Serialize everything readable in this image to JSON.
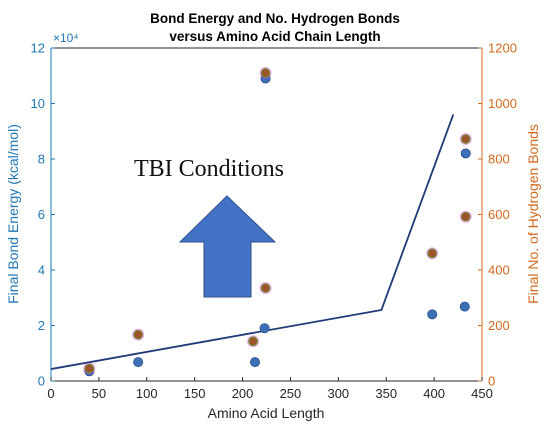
{
  "chart_data": {
    "type": "scatter",
    "title_lines": [
      "Bond Energy and No. Hydrogen Bonds",
      "versus Amino Acid Chain Length"
    ],
    "xlabel": "Amino Acid Length",
    "ylabel_left": "Final Bond Energy (kcal/mol)",
    "ylabel_right": "Final No. of Hydrogen Bonds",
    "y_left_exponent": "×10⁴",
    "xlim": [
      0,
      450
    ],
    "ylim_left": [
      0,
      120000
    ],
    "ylim_right": [
      0,
      1200
    ],
    "x_ticks": [
      "0",
      "50",
      "100",
      "150",
      "200",
      "250",
      "300",
      "350",
      "400",
      "450"
    ],
    "y_left_ticks": [
      "0",
      "2",
      "4",
      "6",
      "8",
      "10",
      "12"
    ],
    "y_right_ticks": [
      "0",
      "200",
      "400",
      "600",
      "800",
      "1000",
      "1200"
    ],
    "grid": false,
    "series": [
      {
        "axis": "left",
        "color": "#3b6fb6",
        "points": [
          {
            "x": 40,
            "y": 3500
          },
          {
            "x": 91,
            "y": 6800
          },
          {
            "x": 213,
            "y": 6800
          },
          {
            "x": 223,
            "y": 19000
          },
          {
            "x": 224,
            "y": 109000
          },
          {
            "x": 398,
            "y": 24000
          },
          {
            "x": 432,
            "y": 26800
          },
          {
            "x": 433,
            "y": 82000
          }
        ]
      },
      {
        "axis": "right",
        "color": "#a0522d",
        "points": [
          {
            "x": 40,
            "y": 45
          },
          {
            "x": 91,
            "y": 167
          },
          {
            "x": 211,
            "y": 143
          },
          {
            "x": 224,
            "y": 335
          },
          {
            "x": 224,
            "y": 1110
          },
          {
            "x": 398,
            "y": 460
          },
          {
            "x": 433,
            "y": 592
          },
          {
            "x": 433,
            "y": 872
          }
        ]
      }
    ],
    "trend_line": {
      "axis": "left",
      "color": "#1f3a78",
      "points": [
        {
          "x": 0,
          "y": 4300
        },
        {
          "x": 345,
          "y": 25600
        },
        {
          "x": 420,
          "y": 96000
        }
      ]
    },
    "annotation": {
      "text": "TBI Conditions",
      "arrow": "up",
      "arrow_color": "#4472c4"
    }
  }
}
